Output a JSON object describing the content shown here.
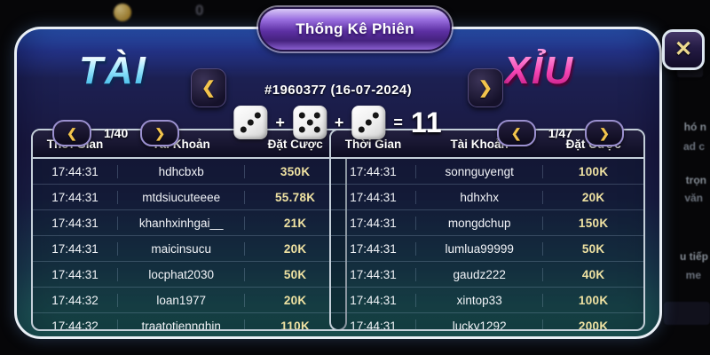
{
  "modal": {
    "title": "Thống Kê Phiên",
    "session": "#1960377 (16-07-2024)",
    "tai_label": "TÀI",
    "xiu_label": "XỈU",
    "close_label": "✕",
    "prev_arrow": "❮",
    "next_arrow": "❯"
  },
  "dice": {
    "values": [
      3,
      5,
      3
    ],
    "plus": "+",
    "equals": "=",
    "total": "11"
  },
  "left_panel": {
    "page": "1/40",
    "headers": [
      "Thời Gian",
      "Tài Khoản",
      "Đặt Cược"
    ],
    "rows": [
      [
        "17:44:31",
        "hdhcbxb",
        "350K"
      ],
      [
        "17:44:31",
        "mtdsiucuteeee",
        "55.78K"
      ],
      [
        "17:44:31",
        "khanhxinhgai__",
        "21K"
      ],
      [
        "17:44:31",
        "maicinsucu",
        "20K"
      ],
      [
        "17:44:31",
        "locphat2030",
        "50K"
      ],
      [
        "17:44:32",
        "loan1977",
        "20K"
      ],
      [
        "17:44:32",
        "traatotiennghin",
        "110K"
      ]
    ]
  },
  "right_panel": {
    "page": "1/47",
    "headers": [
      "Thời Gian",
      "Tài Khoản",
      "Đặt Cược"
    ],
    "rows": [
      [
        "17:44:31",
        "sonnguyengt",
        "100K"
      ],
      [
        "17:44:31",
        "hdhxhx",
        "20K"
      ],
      [
        "17:44:31",
        "mongdchup",
        "150K"
      ],
      [
        "17:44:31",
        "lumlua99999",
        "50K"
      ],
      [
        "17:44:31",
        "gaudz222",
        "40K"
      ],
      [
        "17:44:31",
        "xintop33",
        "100K"
      ],
      [
        "17:44:31",
        "lucky1292",
        "200K"
      ]
    ]
  },
  "backdrop": {
    "coin_value": "0",
    "fragments": [
      "T",
      "hó n",
      "ad c",
      "trọn",
      "văn",
      "u tiếp",
      "me"
    ]
  },
  "colors": {
    "tai_accent": "#6fd8f5",
    "xiu_accent": "#f646b4",
    "amount_gold": "#efe2a2",
    "chevron_gold": "#f3c44d",
    "banner_purple": "#5c2fa2",
    "modal_top_blue": "#2f5ec4",
    "modal_bottom_teal": "#20635b"
  }
}
